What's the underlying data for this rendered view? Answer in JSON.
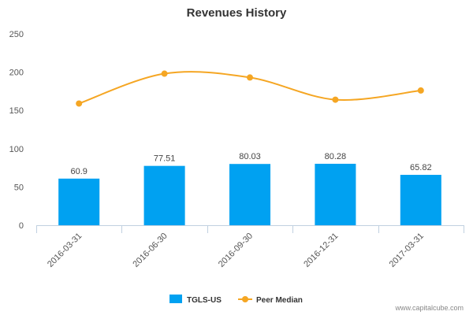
{
  "chart_data": {
    "type": "bar",
    "title": "Revenues History",
    "xlabel": "",
    "ylabel": "",
    "categories": [
      "2016-03-31",
      "2016-06-30",
      "2016-09-30",
      "2016-12-31",
      "2017-03-31"
    ],
    "ylim": [
      0,
      250
    ],
    "yticks": [
      "0",
      "50",
      "100",
      "150",
      "200",
      "250"
    ],
    "grid": false,
    "legend_placement": "bottom-center",
    "series": [
      {
        "name": "TGLS-US",
        "type": "bar",
        "color": "#00a1f1",
        "values": [
          60.9,
          77.51,
          80.03,
          80.28,
          65.82
        ],
        "labels": [
          "60.9",
          "77.51",
          "80.03",
          "80.28",
          "65.82"
        ]
      },
      {
        "name": "Peer Median",
        "type": "line",
        "color": "#f5a623",
        "values": [
          159,
          198,
          193,
          164,
          176
        ]
      }
    ]
  },
  "credit": "www.capitalcube.com"
}
